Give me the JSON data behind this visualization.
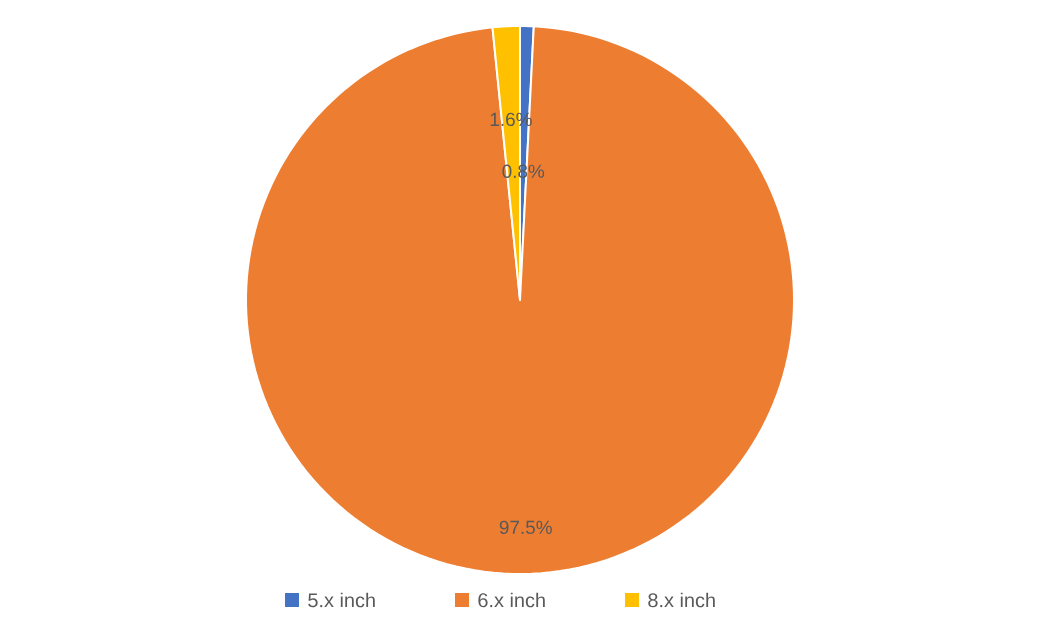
{
  "chart_data": {
    "type": "pie",
    "categories": [
      "5.x inch",
      "6.x inch",
      "8.x inch"
    ],
    "values": [
      0.8,
      97.5,
      1.6
    ],
    "colors": [
      "#4472c4",
      "#ed7d31",
      "#ffc000"
    ],
    "value_labels": [
      "0.8%",
      "97.5%",
      "1.6%"
    ],
    "legend": "bottom"
  }
}
